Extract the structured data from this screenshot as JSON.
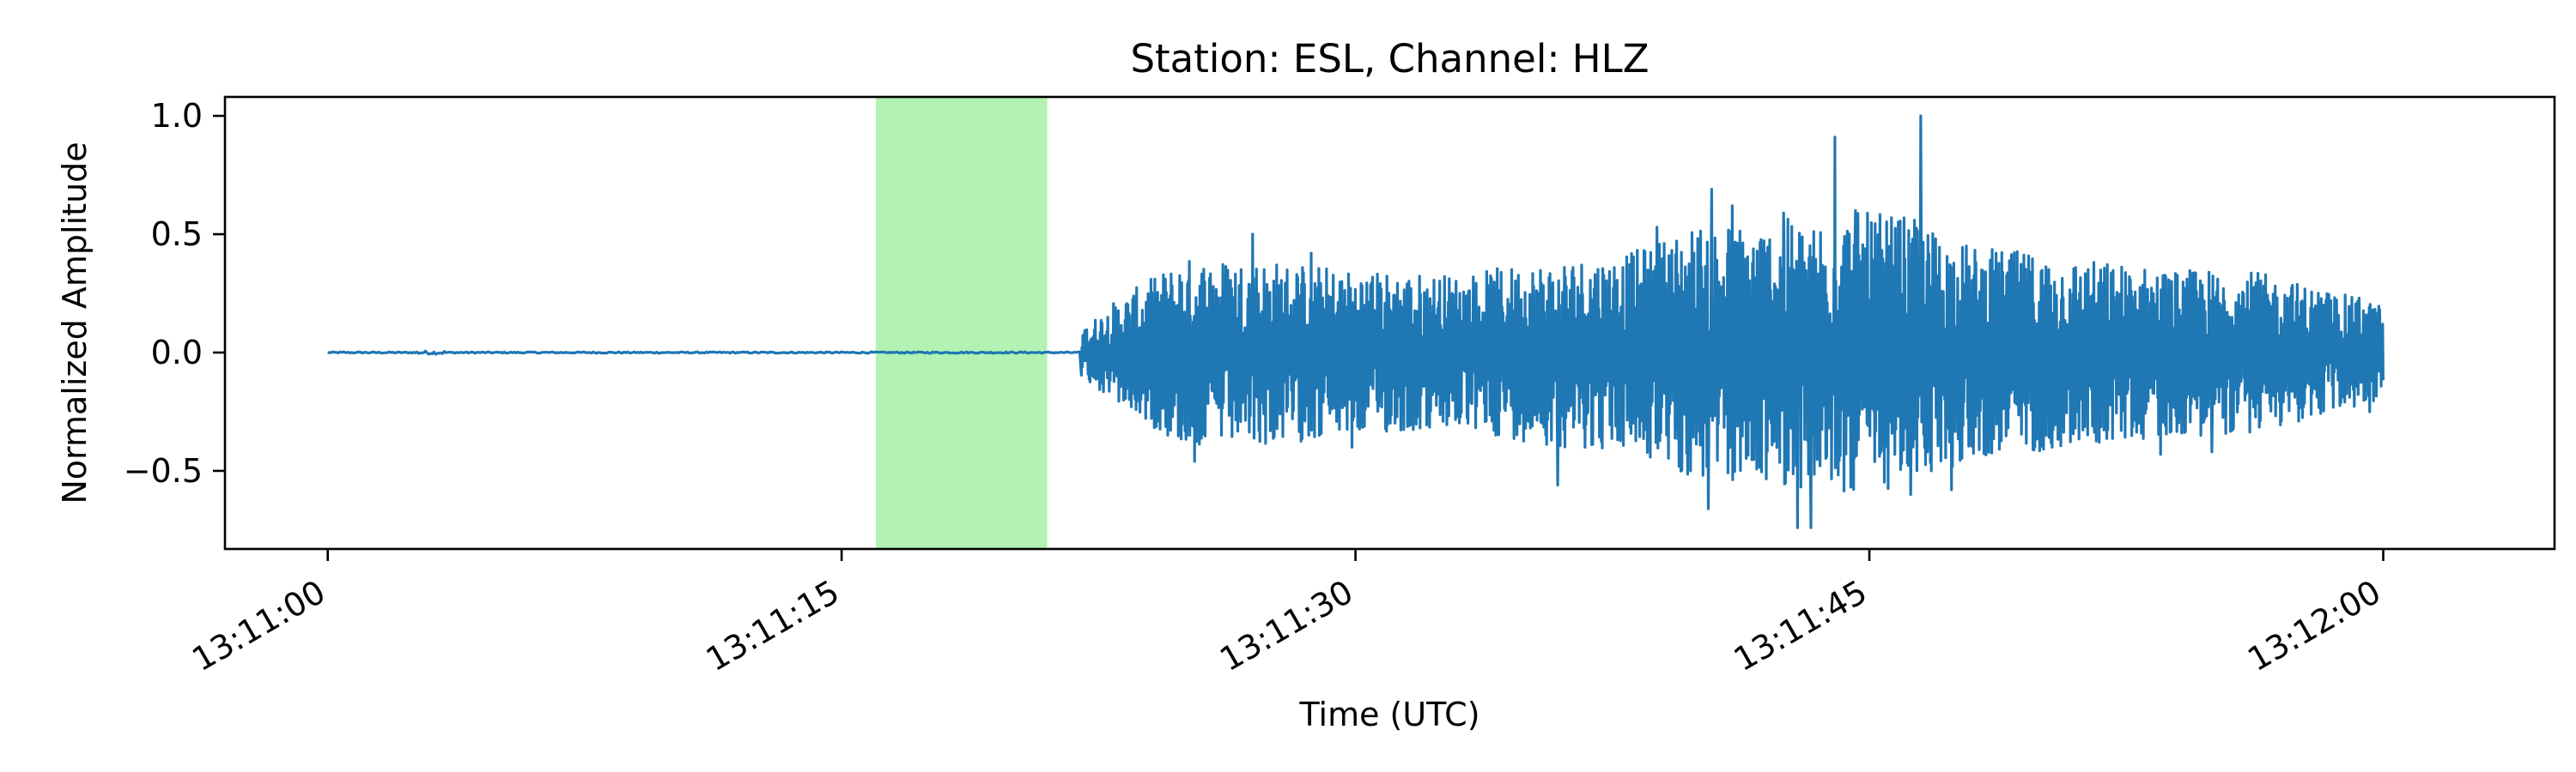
{
  "chart_data": {
    "type": "line",
    "title": "Station: ESL, Channel: HLZ",
    "xlabel": "Time (UTC)",
    "ylabel": "Normalized Amplitude",
    "xlim_seconds": [
      -3,
      65
    ],
    "ylim": [
      -0.83,
      1.08
    ],
    "x_start": "13:11:00",
    "x_end": "13:12:00",
    "x_ticks": [
      {
        "t": 0,
        "label": "13:11:00"
      },
      {
        "t": 15,
        "label": "13:11:15"
      },
      {
        "t": 30,
        "label": "13:11:30"
      },
      {
        "t": 45,
        "label": "13:11:45"
      },
      {
        "t": 60,
        "label": "13:12:00"
      }
    ],
    "y_ticks": [
      {
        "v": -0.5,
        "label": "−0.5"
      },
      {
        "v": 0.0,
        "label": "0.0"
      },
      {
        "v": 0.5,
        "label": "0.5"
      },
      {
        "v": 1.0,
        "label": "1.0"
      }
    ],
    "highlight_window": {
      "start": "13:11:16",
      "end": "13:11:21",
      "color": "#b2f2b2"
    },
    "series": [
      {
        "color": "#1f77b4",
        "noise_end": "13:11:22",
        "envelope": [
          {
            "t": 22,
            "a": 0.1
          },
          {
            "t": 23,
            "a": 0.22
          },
          {
            "t": 25,
            "a": 0.4
          },
          {
            "t": 27,
            "a": 0.4
          },
          {
            "t": 30,
            "a": 0.35
          },
          {
            "t": 33,
            "a": 0.33
          },
          {
            "t": 36,
            "a": 0.4
          },
          {
            "t": 38,
            "a": 0.42
          },
          {
            "t": 40,
            "a": 0.55
          },
          {
            "t": 42,
            "a": 0.55
          },
          {
            "t": 44,
            "a": 0.6
          },
          {
            "t": 46,
            "a": 0.58
          },
          {
            "t": 48,
            "a": 0.45
          },
          {
            "t": 51,
            "a": 0.4
          },
          {
            "t": 54,
            "a": 0.35
          },
          {
            "t": 56,
            "a": 0.35
          },
          {
            "t": 58,
            "a": 0.28
          },
          {
            "t": 60,
            "a": 0.2
          }
        ],
        "peaks": [
          {
            "t": 27.0,
            "v": 0.5
          },
          {
            "t": 28.7,
            "v": 0.42
          },
          {
            "t": 25.3,
            "v": -0.46
          },
          {
            "t": 29.9,
            "v": -0.4
          },
          {
            "t": 35.9,
            "v": -0.56
          },
          {
            "t": 38.8,
            "v": 0.53
          },
          {
            "t": 40.4,
            "v": 0.69
          },
          {
            "t": 41.0,
            "v": 0.62
          },
          {
            "t": 40.3,
            "v": -0.66
          },
          {
            "t": 42.5,
            "v": 0.59
          },
          {
            "t": 42.9,
            "v": -0.74
          },
          {
            "t": 43.3,
            "v": -0.74
          },
          {
            "t": 44.0,
            "v": 0.91
          },
          {
            "t": 44.6,
            "v": 0.6
          },
          {
            "t": 46.5,
            "v": 1.0
          },
          {
            "t": 46.2,
            "v": -0.6
          },
          {
            "t": 47.4,
            "v": -0.58
          },
          {
            "t": 53.5,
            "v": -0.43
          },
          {
            "t": 55.0,
            "v": -0.42
          },
          {
            "t": 59.3,
            "v": 0.23
          },
          {
            "t": 59.6,
            "v": -0.25
          }
        ]
      }
    ]
  }
}
